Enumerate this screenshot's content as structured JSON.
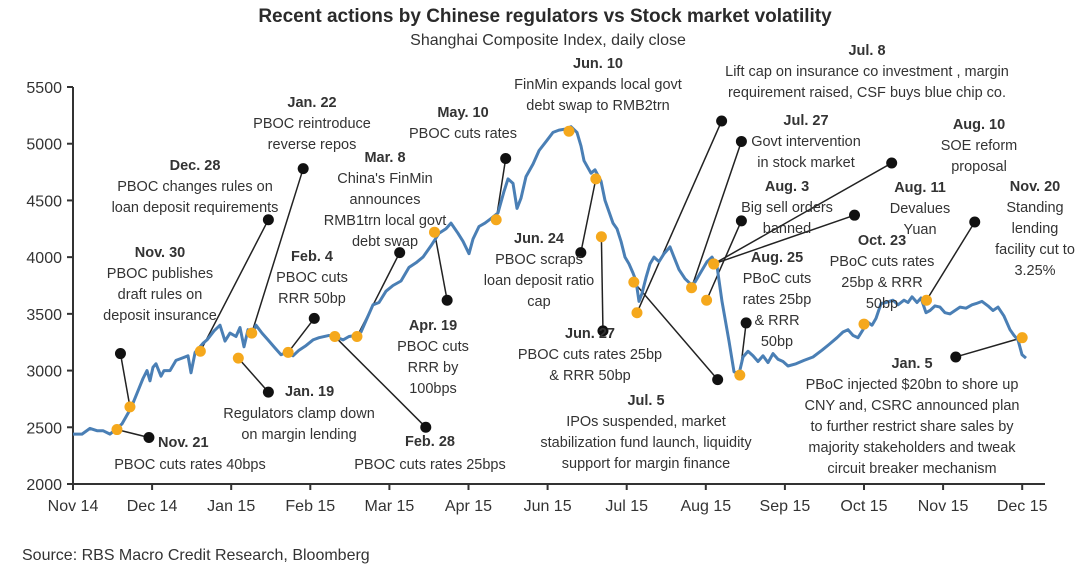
{
  "chart_data": {
    "type": "line",
    "title": "Recent actions by Chinese regulators vs Stock market volatility",
    "subtitle": "Shanghai Composite Index, daily close",
    "xlabel": "",
    "ylabel": "",
    "ylim": [
      2000,
      5500
    ],
    "yticks": [
      2000,
      2500,
      3000,
      3500,
      4000,
      4500,
      5000,
      5500
    ],
    "xtick_labels": [
      "Nov 14",
      "Dec 14",
      "Jan 15",
      "Feb 15",
      "Mar 15",
      "Apr 15",
      "Jun 15",
      "Jul 15",
      "Aug 15",
      "Sep 15",
      "Oct 15",
      "Nov 15",
      "Dec 15"
    ],
    "x_unit": "months since Nov 14 tick",
    "xlim": [
      0,
      12.3
    ],
    "grid": false,
    "legend": "none",
    "colors": {
      "line": "#4a7fb5",
      "event_marker": "#f5a81c",
      "connector": "#222222"
    },
    "series": [
      {
        "name": "Shanghai Composite Index",
        "points": [
          [
            0.0,
            2440
          ],
          [
            0.114,
            2440
          ],
          [
            0.215,
            2490
          ],
          [
            0.303,
            2470
          ],
          [
            0.379,
            2470
          ],
          [
            0.468,
            2440
          ],
          [
            0.556,
            2490
          ],
          [
            0.619,
            2530
          ],
          [
            0.733,
            2670
          ],
          [
            0.809,
            2800
          ],
          [
            0.885,
            2930
          ],
          [
            0.936,
            3000
          ],
          [
            0.973,
            2910
          ],
          [
            1.011,
            3030
          ],
          [
            1.049,
            3060
          ],
          [
            1.112,
            2950
          ],
          [
            1.15,
            3000
          ],
          [
            1.226,
            3000
          ],
          [
            1.302,
            3090
          ],
          [
            1.378,
            3110
          ],
          [
            1.454,
            3130
          ],
          [
            1.492,
            2980
          ],
          [
            1.543,
            3160
          ],
          [
            1.644,
            3240
          ],
          [
            1.694,
            3270
          ],
          [
            1.783,
            3350
          ],
          [
            1.858,
            3400
          ],
          [
            1.922,
            3260
          ],
          [
            1.985,
            3330
          ],
          [
            2.061,
            3300
          ],
          [
            2.111,
            3380
          ],
          [
            2.162,
            3210
          ],
          [
            2.212,
            3360
          ],
          [
            2.263,
            3310
          ],
          [
            2.313,
            3400
          ],
          [
            2.389,
            3330
          ],
          [
            2.465,
            3270
          ],
          [
            2.553,
            3200
          ],
          [
            2.629,
            3140
          ],
          [
            2.705,
            3160
          ],
          [
            2.781,
            3130
          ],
          [
            2.857,
            3180
          ],
          [
            2.946,
            3220
          ],
          [
            3.034,
            3270
          ],
          [
            3.11,
            3290
          ],
          [
            3.236,
            3310
          ],
          [
            3.35,
            3290
          ],
          [
            3.413,
            3270
          ],
          [
            3.489,
            3300
          ],
          [
            3.578,
            3310
          ],
          [
            3.641,
            3340
          ],
          [
            3.717,
            3460
          ],
          [
            3.793,
            3580
          ],
          [
            3.869,
            3600
          ],
          [
            3.957,
            3700
          ],
          [
            4.046,
            3750
          ],
          [
            4.147,
            3790
          ],
          [
            4.248,
            3910
          ],
          [
            4.336,
            3950
          ],
          [
            4.425,
            4000
          ],
          [
            4.526,
            4100
          ],
          [
            4.627,
            4210
          ],
          [
            4.716,
            4250
          ],
          [
            4.779,
            4300
          ],
          [
            4.867,
            4210
          ],
          [
            4.93,
            4140
          ],
          [
            5.006,
            4030
          ],
          [
            5.057,
            4160
          ],
          [
            5.133,
            4270
          ],
          [
            5.209,
            4300
          ],
          [
            5.284,
            4340
          ],
          [
            5.373,
            4390
          ],
          [
            5.449,
            4580
          ],
          [
            5.499,
            4690
          ],
          [
            5.563,
            4650
          ],
          [
            5.613,
            4430
          ],
          [
            5.664,
            4520
          ],
          [
            5.727,
            4710
          ],
          [
            5.816,
            4820
          ],
          [
            5.892,
            4940
          ],
          [
            5.993,
            5030
          ],
          [
            6.068,
            5100
          ],
          [
            6.144,
            5120
          ],
          [
            6.233,
            5130
          ],
          [
            6.296,
            5150
          ],
          [
            6.372,
            5100
          ],
          [
            6.422,
            4980
          ],
          [
            6.46,
            4850
          ],
          [
            6.549,
            4740
          ],
          [
            6.599,
            4770
          ],
          [
            6.675,
            4670
          ],
          [
            6.726,
            4500
          ],
          [
            6.776,
            4400
          ],
          [
            6.827,
            4300
          ],
          [
            6.877,
            4250
          ],
          [
            6.928,
            4140
          ],
          [
            6.978,
            4000
          ],
          [
            7.029,
            3940
          ],
          [
            7.08,
            3860
          ],
          [
            7.118,
            3790
          ],
          [
            7.155,
            3610
          ],
          [
            7.193,
            3680
          ],
          [
            7.244,
            3820
          ],
          [
            7.295,
            3940
          ],
          [
            7.345,
            4000
          ],
          [
            7.408,
            3960
          ],
          [
            7.472,
            4030
          ],
          [
            7.547,
            4090
          ],
          [
            7.598,
            4000
          ],
          [
            7.661,
            3890
          ],
          [
            7.737,
            3810
          ],
          [
            7.813,
            3760
          ],
          [
            7.864,
            3780
          ],
          [
            7.939,
            3870
          ],
          [
            8.015,
            3960
          ],
          [
            8.079,
            4000
          ],
          [
            8.142,
            3920
          ],
          [
            8.205,
            3610
          ],
          [
            8.293,
            3260
          ],
          [
            8.357,
            2990
          ],
          [
            8.42,
            2970
          ],
          [
            8.47,
            3120
          ],
          [
            8.534,
            3170
          ],
          [
            8.597,
            3130
          ],
          [
            8.66,
            3080
          ],
          [
            8.723,
            3130
          ],
          [
            8.786,
            3070
          ],
          [
            8.849,
            3150
          ],
          [
            8.913,
            3100
          ],
          [
            8.976,
            3080
          ],
          [
            9.039,
            3040
          ],
          [
            9.14,
            3060
          ],
          [
            9.241,
            3090
          ],
          [
            9.355,
            3120
          ],
          [
            9.469,
            3180
          ],
          [
            9.558,
            3230
          ],
          [
            9.659,
            3290
          ],
          [
            9.735,
            3340
          ],
          [
            9.798,
            3360
          ],
          [
            9.861,
            3310
          ],
          [
            9.924,
            3290
          ],
          [
            9.987,
            3360
          ],
          [
            10.038,
            3430
          ],
          [
            10.101,
            3400
          ],
          [
            10.152,
            3460
          ],
          [
            10.215,
            3590
          ],
          [
            10.278,
            3600
          ],
          [
            10.367,
            3620
          ],
          [
            10.43,
            3580
          ],
          [
            10.506,
            3620
          ],
          [
            10.556,
            3600
          ],
          [
            10.607,
            3650
          ],
          [
            10.67,
            3600
          ],
          [
            10.721,
            3640
          ],
          [
            10.784,
            3510
          ],
          [
            10.834,
            3530
          ],
          [
            10.898,
            3570
          ],
          [
            10.961,
            3560
          ],
          [
            11.024,
            3510
          ],
          [
            11.087,
            3500
          ],
          [
            11.15,
            3530
          ],
          [
            11.214,
            3560
          ],
          [
            11.29,
            3550
          ],
          [
            11.365,
            3580
          ],
          [
            11.416,
            3590
          ],
          [
            11.492,
            3610
          ],
          [
            11.568,
            3570
          ],
          [
            11.631,
            3530
          ],
          [
            11.694,
            3560
          ],
          [
            11.77,
            3480
          ],
          [
            11.846,
            3360
          ],
          [
            11.896,
            3310
          ],
          [
            11.947,
            3270
          ],
          [
            11.997,
            3140
          ],
          [
            12.048,
            3110
          ]
        ]
      }
    ],
    "annotations": [
      {
        "date": "Nov. 21",
        "text": [
          "PBOC cuts rates 40bps"
        ],
        "point": [
          0.556,
          2480
        ],
        "anchor": [
          0.96,
          2410
        ],
        "label_at": "below-right"
      },
      {
        "date": "Nov. 30",
        "text": [
          "PBOC publishes",
          "draft rules on",
          "deposit insurance"
        ],
        "point": [
          0.72,
          2680
        ],
        "anchor": [
          0.6,
          3150
        ],
        "label_at": "above"
      },
      {
        "date": "Dec. 28",
        "text": [
          "PBOC changes rules on",
          "loan deposit requirements"
        ],
        "point": [
          1.61,
          3170
        ],
        "anchor": [
          2.47,
          4330
        ],
        "label_at": "above"
      },
      {
        "date": "Jan. 19",
        "text": [
          "Regulators clamp down",
          "on margin lending"
        ],
        "point": [
          2.09,
          3110
        ],
        "anchor": [
          2.47,
          2810
        ],
        "label_at": "below-right"
      },
      {
        "date": "Jan. 22",
        "text": [
          "PBOC reintroduce",
          "reverse repos"
        ],
        "point": [
          2.26,
          3330
        ],
        "anchor": [
          2.91,
          4780
        ],
        "label_at": "above"
      },
      {
        "date": "Feb. 4",
        "text": [
          "PBOC cuts",
          "RRR 50bp"
        ],
        "point": [
          2.72,
          3160
        ],
        "anchor": [
          3.05,
          3460
        ],
        "label_at": "above"
      },
      {
        "date": "Feb. 28",
        "text": [
          "PBOC cuts rates 25bps"
        ],
        "point": [
          3.31,
          3300
        ],
        "anchor": [
          4.46,
          2500
        ],
        "label_at": "below"
      },
      {
        "date": "Mar. 8",
        "text": [
          "China's FinMin",
          "announces",
          "RMB1trn local govt",
          "debt swap"
        ],
        "point": [
          3.59,
          3300
        ],
        "anchor": [
          4.13,
          4040
        ],
        "label_at": "above"
      },
      {
        "date": "Apr. 19",
        "text": [
          "PBOC cuts",
          "RRR by",
          "100bps"
        ],
        "point": [
          4.57,
          4220
        ],
        "anchor": [
          4.73,
          3620
        ],
        "label_at": "below"
      },
      {
        "date": "May. 10",
        "text": [
          "PBOC cuts rates"
        ],
        "point": [
          5.35,
          4330
        ],
        "anchor": [
          5.47,
          4870
        ],
        "label_at": "above"
      },
      {
        "date": "Jun. 10",
        "text": [
          "FinMin  expands local govt",
          "debt swap to RMB2trn"
        ],
        "point": [
          6.27,
          5110
        ],
        "anchor": [
          6.27,
          5110
        ],
        "label_at": "above"
      },
      {
        "date": "Jun. 24",
        "text": [
          "PBOC scraps",
          "loan deposit ratio",
          "cap"
        ],
        "point": [
          6.61,
          4690
        ],
        "anchor": [
          6.42,
          4040
        ],
        "label_at": "below"
      },
      {
        "date": "Jun. 27",
        "text": [
          "PBOC cuts rates 25bp",
          "& RRR 50bp"
        ],
        "point": [
          6.68,
          4180
        ],
        "anchor": [
          6.7,
          3350
        ],
        "label_at": "below"
      },
      {
        "date": "Jul. 5",
        "text": [
          "IPOs suspended, market",
          "stabilization fund launch, liquidity",
          "support for margin finance"
        ],
        "point": [
          7.09,
          3780
        ],
        "anchor": [
          8.15,
          2920
        ],
        "label_at": "below"
      },
      {
        "date": "Jul. 8",
        "text": [
          "Lift cap on insurance co investment , margin",
          "requirement raised, CSF buys blue chip co."
        ],
        "point": [
          7.13,
          3510
        ],
        "anchor": [
          8.2,
          5200
        ],
        "label_at": "above"
      },
      {
        "date": "Jul. 27",
        "text": [
          "Govt intervention",
          "in stock market"
        ],
        "point": [
          7.82,
          3730
        ],
        "anchor": [
          8.45,
          5020
        ],
        "label_at": "right"
      },
      {
        "date": "Aug. 3",
        "text": [
          "Big sell orders",
          "banned"
        ],
        "point": [
          8.01,
          3620
        ],
        "anchor": [
          8.45,
          4320
        ],
        "label_at": "above-right"
      },
      {
        "date": "Aug. 10",
        "text": [
          "SOE reform",
          "proposal"
        ],
        "point": [
          8.1,
          3940
        ],
        "anchor": [
          10.35,
          4830
        ],
        "label_at": "above-right"
      },
      {
        "date": "Aug. 11",
        "text": [
          "Devalues",
          "Yuan"
        ],
        "point": [
          8.1,
          3940
        ],
        "anchor": [
          9.88,
          4370
        ],
        "label_at": "above-right"
      },
      {
        "date": "Aug. 25",
        "text": [
          "PBoC cuts",
          "rates 25bp",
          "& RRR",
          "50bp"
        ],
        "point": [
          8.43,
          2960
        ],
        "anchor": [
          8.51,
          3420
        ],
        "label_at": "above-right"
      },
      {
        "date": "Oct. 23",
        "text": [
          "PBoC cuts rates",
          "25bp & RRR",
          "50bp"
        ],
        "point": [
          10.0,
          3410
        ],
        "anchor": [
          10.0,
          3410
        ],
        "label_at": "above"
      },
      {
        "date": "Nov. 20",
        "text": [
          "Standing",
          "lending",
          "facility cut to",
          "3.25%"
        ],
        "point": [
          10.79,
          3620
        ],
        "anchor": [
          11.4,
          4310
        ],
        "label_at": "above-right"
      },
      {
        "date": "Jan. 5",
        "text": [
          "PBoC injected $20bn to shore up",
          "CNY and, CSRC announced  plan",
          "to further restrict share sales  by",
          "majority stakeholders and  tweak",
          "circuit breaker mechanism"
        ],
        "point": [
          12.0,
          3290
        ],
        "anchor": [
          11.16,
          3120
        ],
        "label_at": "below"
      }
    ]
  },
  "source": "Source: RBS Macro Credit Research, Bloomberg"
}
